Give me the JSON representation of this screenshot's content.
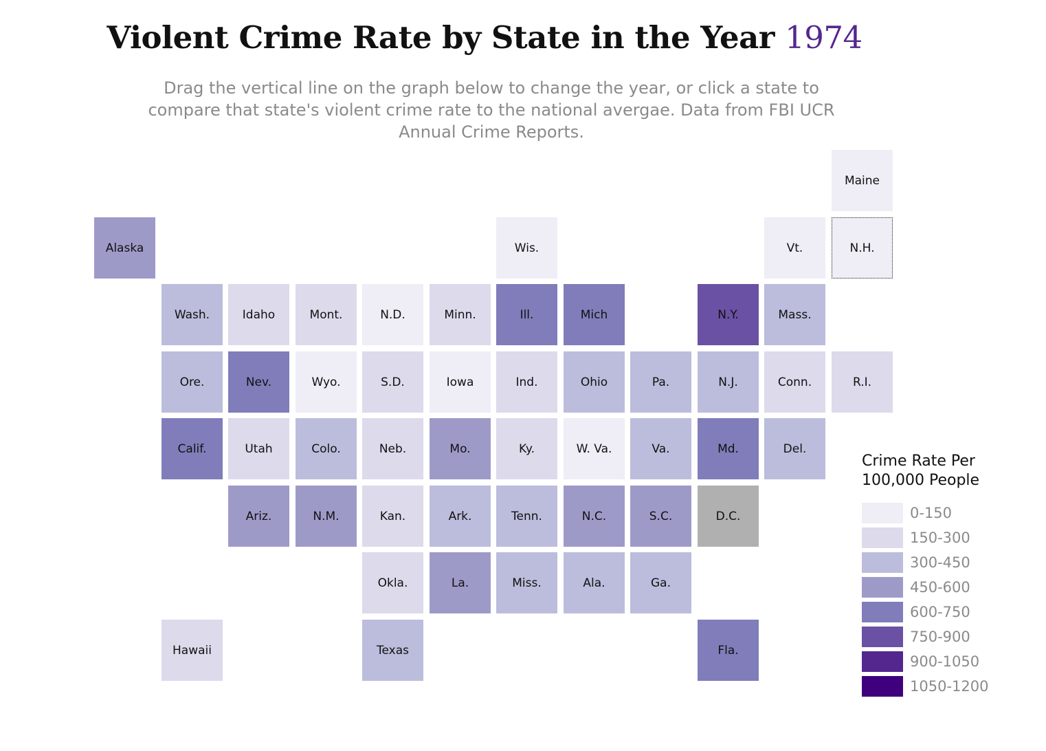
{
  "title": {
    "prefix": "Violent Crime Rate by State in the Year ",
    "year": "1974"
  },
  "subtitle": "Drag the vertical line on the graph below to change the year, or click a state to compare that state's violent crime rate to the national avergae. Data from FBI UCR Annual Crime Reports.",
  "colors": {
    "accent": "#54278f",
    "nodata": "#b0b0b0",
    "scale": [
      "#efedf5",
      "#dcdaeb",
      "#bcbddc",
      "#9e9ac8",
      "#807dba",
      "#6a51a3",
      "#54278f",
      "#3f007d"
    ]
  },
  "states": [
    {
      "label": "Maine",
      "col": 11,
      "row": 0,
      "bin": 0
    },
    {
      "label": "Alaska",
      "col": 0,
      "row": 1,
      "bin": 3
    },
    {
      "label": "Wis.",
      "col": 6,
      "row": 1,
      "bin": 0
    },
    {
      "label": "Vt.",
      "col": 10,
      "row": 1,
      "bin": 0
    },
    {
      "label": "N.H.",
      "col": 11,
      "row": 1,
      "bin": 0,
      "selected": true
    },
    {
      "label": "Wash.",
      "col": 1,
      "row": 2,
      "bin": 2
    },
    {
      "label": "Idaho",
      "col": 2,
      "row": 2,
      "bin": 1
    },
    {
      "label": "Mont.",
      "col": 3,
      "row": 2,
      "bin": 1
    },
    {
      "label": "N.D.",
      "col": 4,
      "row": 2,
      "bin": 0
    },
    {
      "label": "Minn.",
      "col": 5,
      "row": 2,
      "bin": 1
    },
    {
      "label": "Ill.",
      "col": 6,
      "row": 2,
      "bin": 4
    },
    {
      "label": "Mich",
      "col": 7,
      "row": 2,
      "bin": 4
    },
    {
      "label": "N.Y.",
      "col": 9,
      "row": 2,
      "bin": 5
    },
    {
      "label": "Mass.",
      "col": 10,
      "row": 2,
      "bin": 2
    },
    {
      "label": "Ore.",
      "col": 1,
      "row": 3,
      "bin": 2
    },
    {
      "label": "Nev.",
      "col": 2,
      "row": 3,
      "bin": 4
    },
    {
      "label": "Wyo.",
      "col": 3,
      "row": 3,
      "bin": 0
    },
    {
      "label": "S.D.",
      "col": 4,
      "row": 3,
      "bin": 1
    },
    {
      "label": "Iowa",
      "col": 5,
      "row": 3,
      "bin": 0
    },
    {
      "label": "Ind.",
      "col": 6,
      "row": 3,
      "bin": 1
    },
    {
      "label": "Ohio",
      "col": 7,
      "row": 3,
      "bin": 2
    },
    {
      "label": "Pa.",
      "col": 8,
      "row": 3,
      "bin": 2
    },
    {
      "label": "N.J.",
      "col": 9,
      "row": 3,
      "bin": 2
    },
    {
      "label": "Conn.",
      "col": 10,
      "row": 3,
      "bin": 1
    },
    {
      "label": "R.I.",
      "col": 11,
      "row": 3,
      "bin": 1
    },
    {
      "label": "Calif.",
      "col": 1,
      "row": 4,
      "bin": 4
    },
    {
      "label": "Utah",
      "col": 2,
      "row": 4,
      "bin": 1
    },
    {
      "label": "Colo.",
      "col": 3,
      "row": 4,
      "bin": 2
    },
    {
      "label": "Neb.",
      "col": 4,
      "row": 4,
      "bin": 1
    },
    {
      "label": "Mo.",
      "col": 5,
      "row": 4,
      "bin": 3
    },
    {
      "label": "Ky.",
      "col": 6,
      "row": 4,
      "bin": 1
    },
    {
      "label": "W. Va.",
      "col": 7,
      "row": 4,
      "bin": 0
    },
    {
      "label": "Va.",
      "col": 8,
      "row": 4,
      "bin": 2
    },
    {
      "label": "Md.",
      "col": 9,
      "row": 4,
      "bin": 4
    },
    {
      "label": "Del.",
      "col": 10,
      "row": 4,
      "bin": 2
    },
    {
      "label": "Ariz.",
      "col": 2,
      "row": 5,
      "bin": 3
    },
    {
      "label": "N.M.",
      "col": 3,
      "row": 5,
      "bin": 3
    },
    {
      "label": "Kan.",
      "col": 4,
      "row": 5,
      "bin": 1
    },
    {
      "label": "Ark.",
      "col": 5,
      "row": 5,
      "bin": 2
    },
    {
      "label": "Tenn.",
      "col": 6,
      "row": 5,
      "bin": 2
    },
    {
      "label": "N.C.",
      "col": 7,
      "row": 5,
      "bin": 3
    },
    {
      "label": "S.C.",
      "col": 8,
      "row": 5,
      "bin": 3
    },
    {
      "label": "D.C.",
      "col": 9,
      "row": 5,
      "bin": -1
    },
    {
      "label": "Okla.",
      "col": 4,
      "row": 6,
      "bin": 1
    },
    {
      "label": "La.",
      "col": 5,
      "row": 6,
      "bin": 3
    },
    {
      "label": "Miss.",
      "col": 6,
      "row": 6,
      "bin": 2
    },
    {
      "label": "Ala.",
      "col": 7,
      "row": 6,
      "bin": 2
    },
    {
      "label": "Ga.",
      "col": 8,
      "row": 6,
      "bin": 2
    },
    {
      "label": "Hawaii",
      "col": 1,
      "row": 7,
      "bin": 1
    },
    {
      "label": "Texas",
      "col": 4,
      "row": 7,
      "bin": 2
    },
    {
      "label": "Fla.",
      "col": 9,
      "row": 7,
      "bin": 4
    }
  ],
  "legend": {
    "title": "Crime Rate Per\n100,000 People",
    "items": [
      {
        "label": "0-150",
        "color": "#efedf5"
      },
      {
        "label": "150-300",
        "color": "#dcdaeb"
      },
      {
        "label": "300-450",
        "color": "#bcbddc"
      },
      {
        "label": "450-600",
        "color": "#9e9ac8"
      },
      {
        "label": "600-750",
        "color": "#807dba"
      },
      {
        "label": "750-900",
        "color": "#6a51a3"
      },
      {
        "label": "900-1050",
        "color": "#54278f"
      },
      {
        "label": "1050-1200",
        "color": "#3f007d"
      }
    ]
  }
}
